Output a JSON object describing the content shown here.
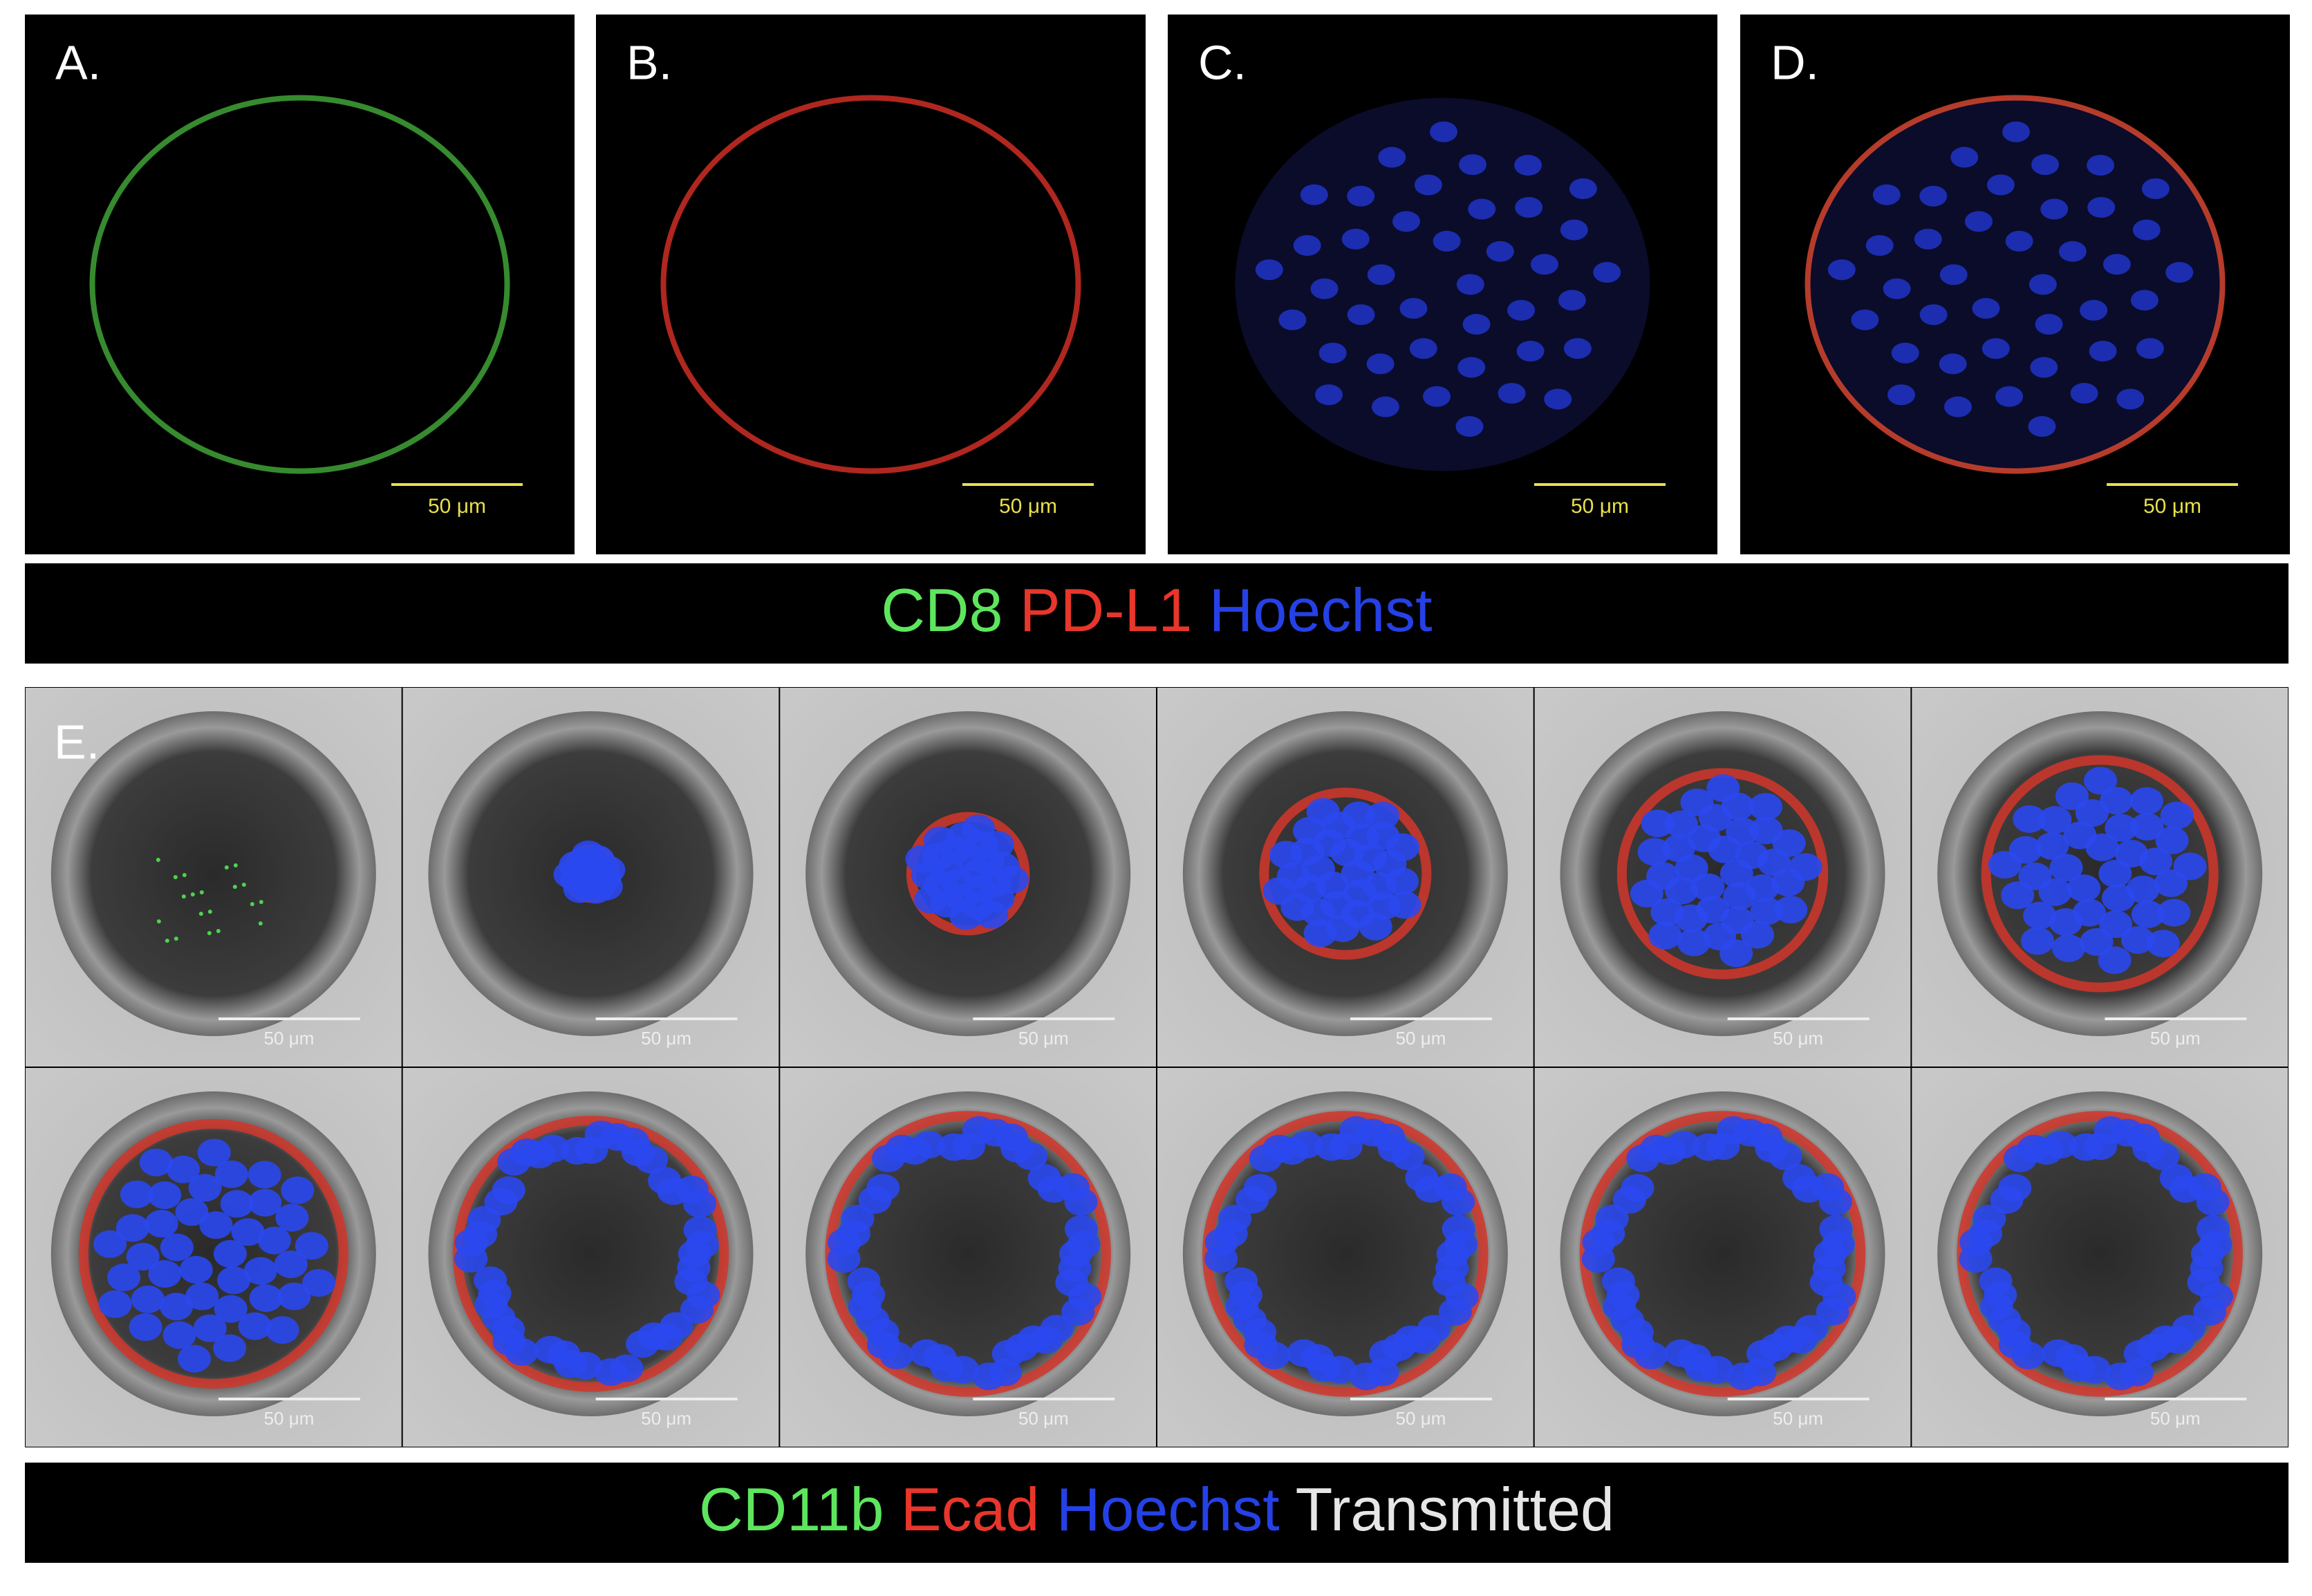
{
  "panels": [
    {
      "label": "A.",
      "scale_bar": "50 μm"
    },
    {
      "label": "B.",
      "scale_bar": "50 μm"
    },
    {
      "label": "C.",
      "scale_bar": "50 μm"
    },
    {
      "label": "D.",
      "scale_bar": "50 μm"
    }
  ],
  "legend_top": [
    {
      "text": "CD8",
      "color": "#5de65d"
    },
    {
      "text": "PD-L1",
      "color": "#e8362b"
    },
    {
      "text": "Hoechst",
      "color": "#2541e6"
    }
  ],
  "panel_e": {
    "label": "E.",
    "tiles": [
      {
        "scale_bar": "50 μm"
      },
      {
        "scale_bar": "50 μm"
      },
      {
        "scale_bar": "50 μm"
      },
      {
        "scale_bar": "50 μm"
      },
      {
        "scale_bar": "50 μm"
      },
      {
        "scale_bar": "50 μm"
      },
      {
        "scale_bar": "50 μm"
      },
      {
        "scale_bar": "50 μm"
      },
      {
        "scale_bar": "50 μm"
      },
      {
        "scale_bar": "50 μm"
      },
      {
        "scale_bar": "50 μm"
      },
      {
        "scale_bar": "50 μm"
      }
    ]
  },
  "legend_bottom": [
    {
      "text": "CD11b",
      "color": "#5de65d"
    },
    {
      "text": "Ecad",
      "color": "#e8362b"
    },
    {
      "text": "Hoechst",
      "color": "#2541e6"
    },
    {
      "text": "Transmitted",
      "color": "#e6e6e6"
    }
  ]
}
